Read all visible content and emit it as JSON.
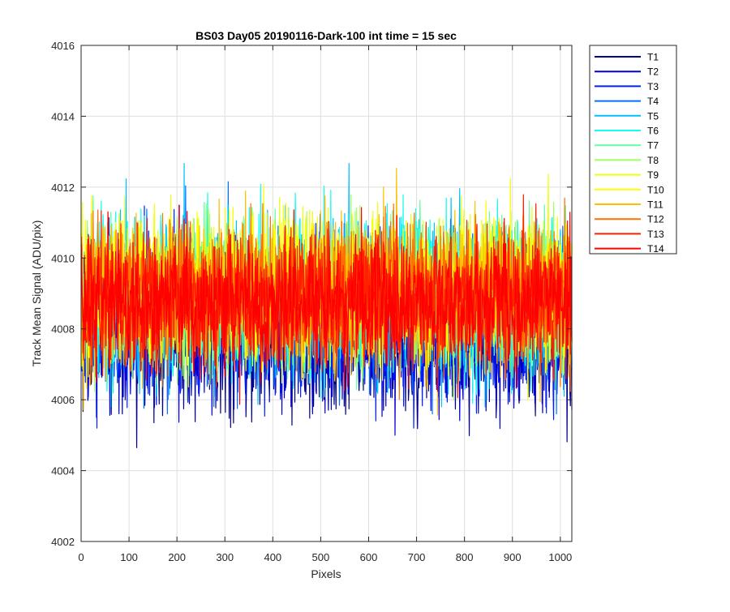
{
  "chart_data": {
    "type": "line",
    "title": "BS03 Day05 20190116-Dark-100 int time = 15 sec",
    "xlabel": "Pixels",
    "ylabel": "Track Mean Signal (ADU/pix)",
    "xlim": [
      0,
      1024
    ],
    "ylim": [
      4002,
      4016
    ],
    "xticks": [
      0,
      100,
      200,
      300,
      400,
      500,
      600,
      700,
      800,
      900,
      1000
    ],
    "yticks": [
      4002,
      4004,
      4006,
      4008,
      4010,
      4012,
      4014,
      4016
    ],
    "grid": true,
    "legend_position": "outside-top-right",
    "n_points": 1024,
    "series": [
      {
        "name": "T1",
        "color": "#00008f",
        "mean": 4007.6,
        "spread": 1.0,
        "min": 4003.6,
        "max": 4011.2
      },
      {
        "name": "T2",
        "color": "#0000d5",
        "mean": 4007.8,
        "spread": 1.0,
        "min": 4004.4,
        "max": 4011.4
      },
      {
        "name": "T3",
        "color": "#0020ff",
        "mean": 4008.2,
        "spread": 1.0,
        "min": 4005.2,
        "max": 4011.8
      },
      {
        "name": "T4",
        "color": "#0070ff",
        "mean": 4008.6,
        "spread": 1.05,
        "min": 4005.6,
        "max": 4013.2
      },
      {
        "name": "T5",
        "color": "#00bfff",
        "mean": 4008.8,
        "spread": 1.05,
        "min": 4005.8,
        "max": 4014.2
      },
      {
        "name": "T6",
        "color": "#10ffef",
        "mean": 4008.9,
        "spread": 1.05,
        "min": 4005.9,
        "max": 4014.3
      },
      {
        "name": "T7",
        "color": "#60ffa0",
        "mean": 4009.0,
        "spread": 1.0,
        "min": 4006.0,
        "max": 4013.2
      },
      {
        "name": "T8",
        "color": "#9fff60",
        "mean": 4009.0,
        "spread": 1.0,
        "min": 4006.0,
        "max": 4013.0
      },
      {
        "name": "T9",
        "color": "#efff10",
        "mean": 4009.1,
        "spread": 1.0,
        "min": 4006.0,
        "max": 4013.2
      },
      {
        "name": "T10",
        "color": "#ffff00",
        "mean": 4009.1,
        "spread": 1.0,
        "min": 4006.0,
        "max": 4013.5
      },
      {
        "name": "T11",
        "color": "#ffbf00",
        "mean": 4009.0,
        "spread": 1.0,
        "min": 4004.3,
        "max": 4013.2
      },
      {
        "name": "T12",
        "color": "#ff7000",
        "mean": 4009.0,
        "spread": 1.0,
        "min": 4005.6,
        "max": 4013.6
      },
      {
        "name": "T13",
        "color": "#ff2000",
        "mean": 4008.8,
        "spread": 0.95,
        "min": 4005.4,
        "max": 4013.4
      },
      {
        "name": "T14",
        "color": "#ff0000",
        "mean": 4008.7,
        "spread": 0.9,
        "min": 4004.9,
        "max": 4012.4
      }
    ]
  }
}
